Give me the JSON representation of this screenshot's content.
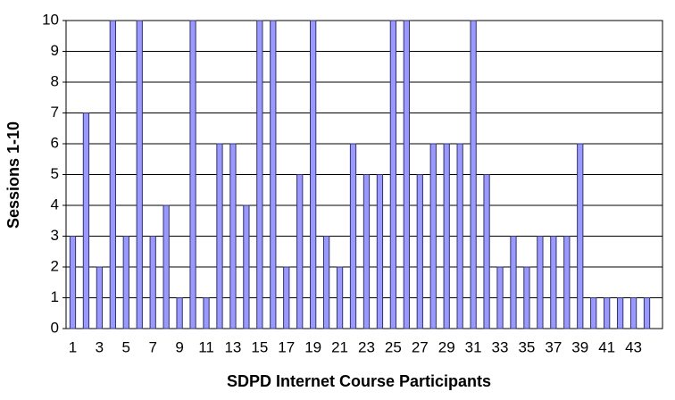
{
  "chart_data": {
    "type": "bar",
    "x_label": "SDPD Internet Course Participants",
    "y_label": "Sessions 1-10",
    "categories": [
      "1",
      null,
      "3",
      null,
      "5",
      null,
      "7",
      null,
      "9",
      null,
      "11",
      null,
      "13",
      null,
      "15",
      null,
      "17",
      null,
      "19",
      null,
      "21",
      null,
      "23",
      null,
      "25",
      null,
      "27",
      null,
      "29",
      null,
      "31",
      null,
      "33",
      null,
      "35",
      null,
      "37",
      null,
      "39",
      null,
      "41",
      null,
      "43",
      null
    ],
    "values": [
      3,
      7,
      2,
      10,
      3,
      10,
      3,
      4,
      1,
      10,
      1,
      6,
      6,
      4,
      10,
      10,
      2,
      5,
      10,
      3,
      2,
      6,
      5,
      5,
      10,
      10,
      5,
      6,
      6,
      6,
      10,
      5,
      2,
      3,
      2,
      3,
      3,
      3,
      6,
      1,
      1,
      1,
      1,
      1
    ],
    "color": "#9999ff",
    "ylim": [
      0,
      10
    ],
    "yticks": [
      0,
      1,
      2,
      3,
      4,
      5,
      6,
      7,
      8,
      9,
      10
    ],
    "grid": true
  }
}
